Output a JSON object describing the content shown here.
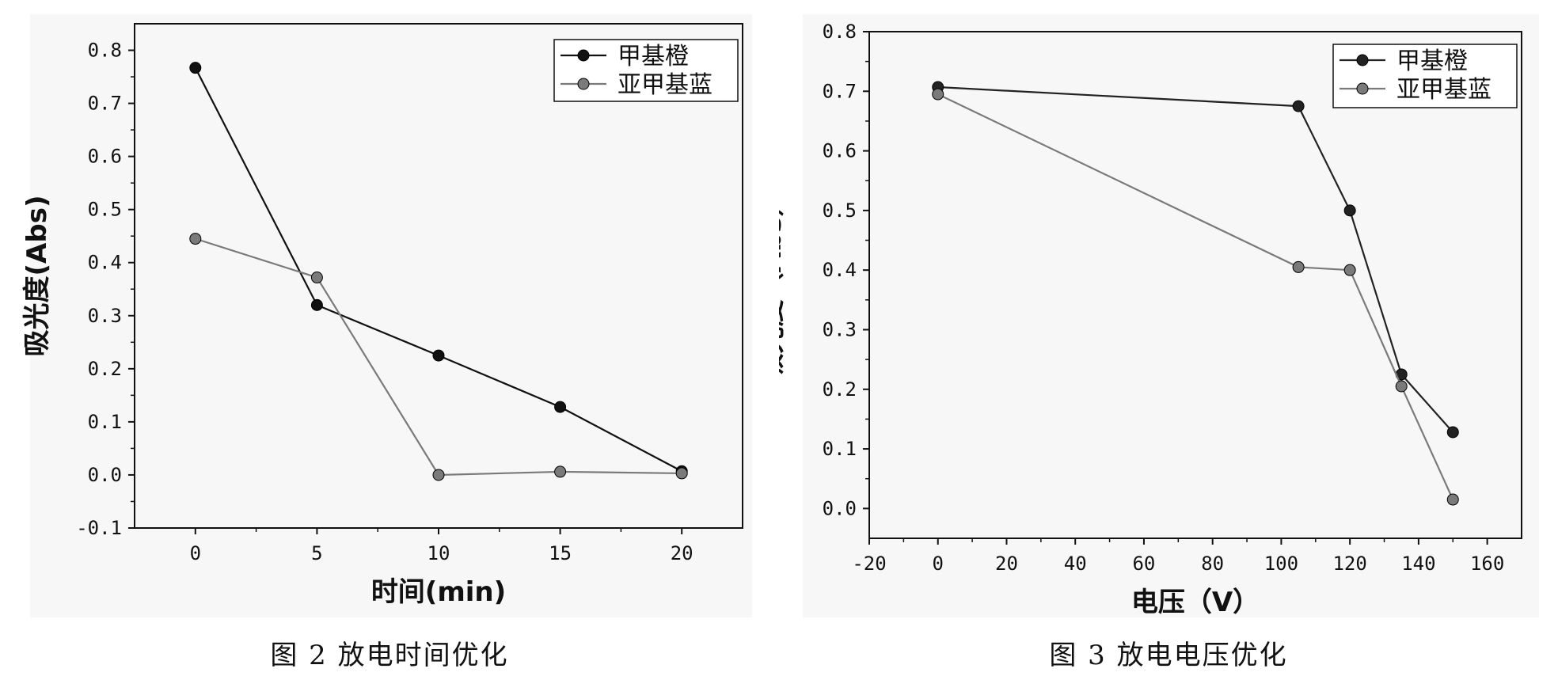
{
  "captions": {
    "left": "图 2  放电时间优化",
    "right": "图 3  放电电压优化"
  },
  "chart_data": [
    {
      "type": "line",
      "xlabel": "时间(min)",
      "ylabel": "吸光度(Abs)",
      "xlim": [
        -2.5,
        22.5
      ],
      "ylim": [
        -0.1,
        0.85
      ],
      "xticks": [
        0,
        5,
        10,
        15,
        20
      ],
      "xtick_labels": [
        "0",
        "5",
        "10",
        "15",
        "20"
      ],
      "yticks": [
        -0.1,
        0.0,
        0.1,
        0.2,
        0.3,
        0.4,
        0.5,
        0.6,
        0.7,
        0.8
      ],
      "ytick_labels": [
        "-0.1",
        "0.0",
        "0.1",
        "0.2",
        "0.3",
        "0.4",
        "0.5",
        "0.6",
        "0.7",
        "0.8"
      ],
      "legend_position": "top-right",
      "series": [
        {
          "name": "甲基橙",
          "color": "#111111",
          "x": [
            0,
            5,
            10,
            15,
            20
          ],
          "y": [
            0.767,
            0.32,
            0.225,
            0.128,
            0.007
          ]
        },
        {
          "name": "亚甲基蓝",
          "color": "#7a7a7a",
          "x": [
            0,
            5,
            10,
            15,
            20
          ],
          "y": [
            0.445,
            0.372,
            0.0,
            0.006,
            0.003
          ]
        }
      ]
    },
    {
      "type": "line",
      "xlabel": "电压（V）",
      "ylabel": "吸光度（Abs）",
      "xlim": [
        -20,
        170
      ],
      "ylim": [
        -0.05,
        0.8
      ],
      "xticks": [
        -20,
        0,
        20,
        40,
        60,
        80,
        100,
        120,
        140,
        160
      ],
      "xtick_labels": [
        "-20",
        "0",
        "20",
        "40",
        "60",
        "80",
        "100",
        "120",
        "140",
        "160"
      ],
      "yticks": [
        0.0,
        0.1,
        0.2,
        0.3,
        0.4,
        0.5,
        0.6,
        0.7,
        0.8
      ],
      "ytick_labels": [
        "0.0",
        "0.1",
        "0.2",
        "0.3",
        "0.4",
        "0.5",
        "0.6",
        "0.7",
        "0.8"
      ],
      "legend_position": "top-right",
      "series": [
        {
          "name": "甲基橙",
          "color": "#222222",
          "x": [
            0,
            105,
            120,
            135,
            150
          ],
          "y": [
            0.707,
            0.675,
            0.5,
            0.225,
            0.128
          ]
        },
        {
          "name": "亚甲基蓝",
          "color": "#7a7a7a",
          "x": [
            0,
            105,
            120,
            135,
            150
          ],
          "y": [
            0.695,
            0.405,
            0.4,
            0.205,
            0.015
          ]
        }
      ]
    }
  ]
}
